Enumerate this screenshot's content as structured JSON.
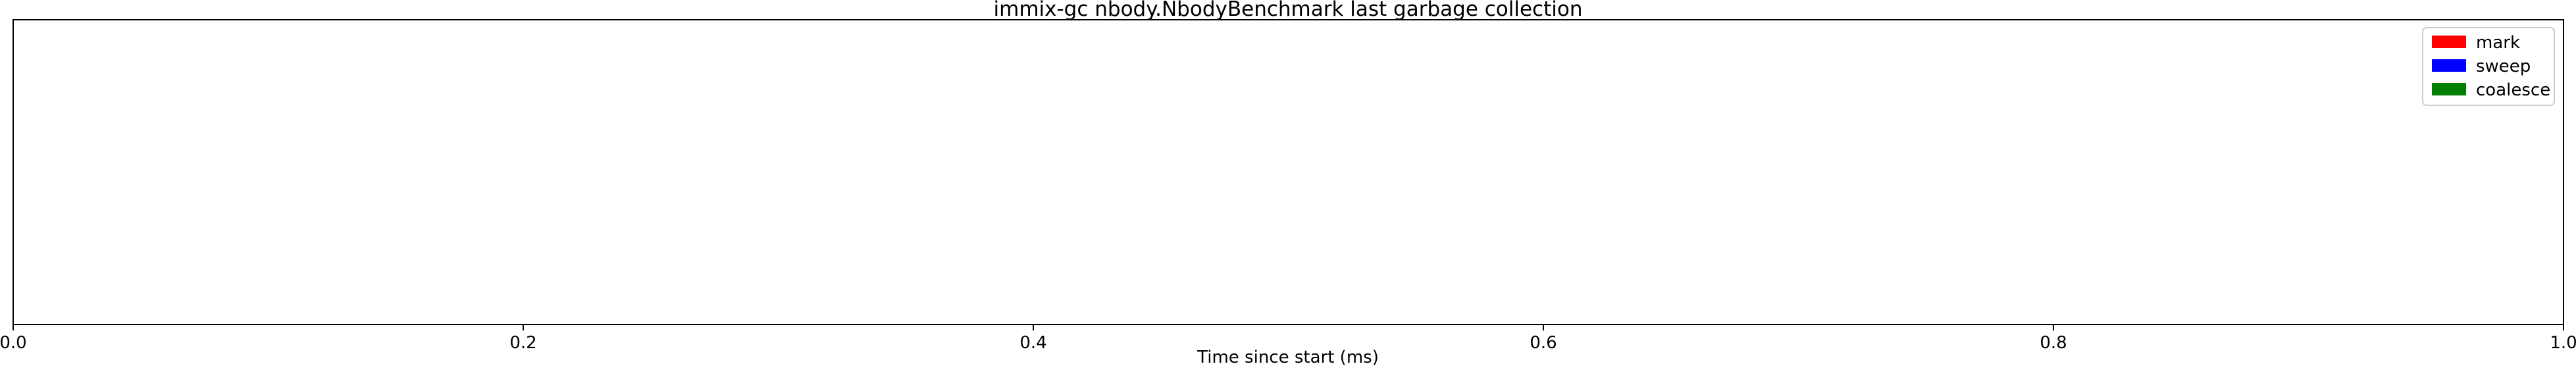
{
  "chart_data": {
    "type": "bar",
    "title": "immix-gc nbody.NbodyBenchmark last garbage collection",
    "xlabel": "Time since start (ms)",
    "ylabel": "",
    "xlim": [
      0.0,
      1.0
    ],
    "xticks": [
      "0.0",
      "0.2",
      "0.4",
      "0.6",
      "0.8",
      "1.0"
    ],
    "grid": false,
    "legend_position": "top-right",
    "series": [
      {
        "name": "mark",
        "color": "#ff0000",
        "values": []
      },
      {
        "name": "sweep",
        "color": "#0000ff",
        "values": []
      },
      {
        "name": "coalesce",
        "color": "#008000",
        "values": []
      }
    ]
  }
}
